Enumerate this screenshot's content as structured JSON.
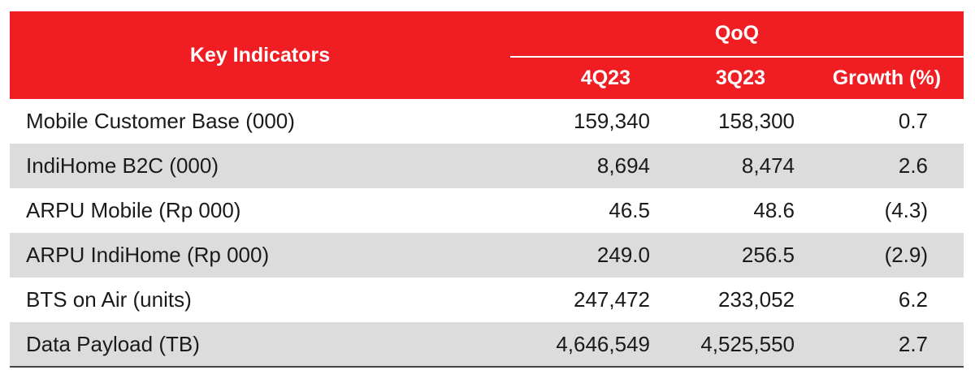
{
  "header": {
    "key_indicators": "Key Indicators",
    "group": "QoQ",
    "col_4q23": "4Q23",
    "col_3q23": "3Q23",
    "col_growth": "Growth (%)"
  },
  "rows": [
    {
      "label": "Mobile Customer Base (000)",
      "q4": "159,340",
      "q3": "158,300",
      "growth": "0.7"
    },
    {
      "label": "IndiHome B2C (000)",
      "q4": "8,694",
      "q3": "8,474",
      "growth": "2.6"
    },
    {
      "label": "ARPU Mobile (Rp 000)",
      "q4": "46.5",
      "q3": "48.6",
      "growth": "(4.3)"
    },
    {
      "label": "ARPU IndiHome (Rp 000)",
      "q4": "249.0",
      "q3": "256.5",
      "growth": "(2.9)"
    },
    {
      "label": "BTS on Air (units)",
      "q4": "247,472",
      "q3": "233,052",
      "growth": "6.2"
    },
    {
      "label": "Data Payload (TB)",
      "q4": "4,646,549",
      "q3": "4,525,550",
      "growth": "2.7"
    }
  ],
  "colors": {
    "header_bg": "#f01e22",
    "header_text": "#ffffff",
    "stripe_bg": "#dcdcdc"
  }
}
